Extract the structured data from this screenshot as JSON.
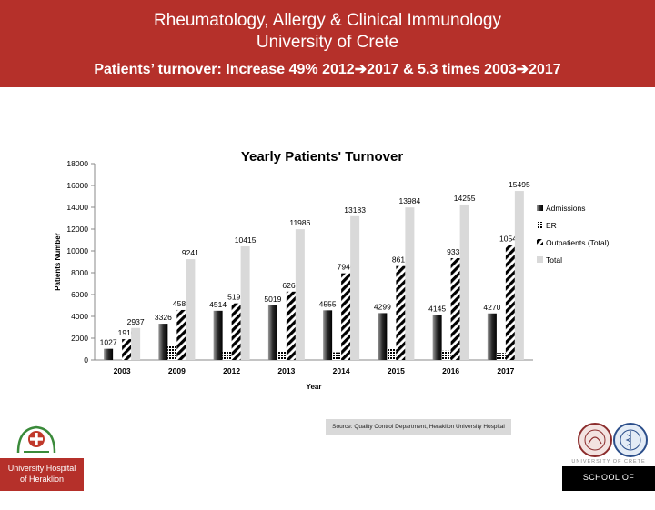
{
  "header": {
    "line1": "Rheumatology, Allergy & Clinical Immunology",
    "line2": "University of Crete",
    "line3": "Patients’ turnover: Increase 49% 2012➔2017  & 5.3 times 2003➔2017",
    "bg_color": "#b5302a"
  },
  "chart_data": {
    "type": "bar",
    "title": "Yearly Patients' Turnover",
    "xlabel": "Year",
    "ylabel": "Patients Number",
    "ylim": [
      0,
      18000
    ],
    "yticks": [
      0,
      2000,
      4000,
      6000,
      8000,
      10000,
      12000,
      14000,
      16000,
      18000
    ],
    "grid": false,
    "legend_position": "right",
    "categories": [
      "2003",
      "2009",
      "2012",
      "2013",
      "2014",
      "2015",
      "2016",
      "2017"
    ],
    "series": [
      {
        "name": "Admissions",
        "pattern": "gradient-dark",
        "values": [
          1027,
          3326,
          4514,
          5019,
          4555,
          4299,
          4145,
          4270
        ],
        "labels": [
          "1027",
          "3326",
          "4514",
          "5019",
          "4555",
          "4299",
          "4145",
          "4270"
        ]
      },
      {
        "name": "ER",
        "pattern": "dots",
        "values": [
          null,
          1400,
          750,
          750,
          700,
          1050,
          850,
          650
        ],
        "labels": [
          "",
          "",
          "",
          "",
          "",
          "",
          "",
          ""
        ]
      },
      {
        "name": "Outpatients (Total)",
        "pattern": "diagonal-stripes",
        "values": [
          1910,
          4586,
          5195,
          6267,
          7946,
          8610,
          9334,
          10543
        ],
        "labels": [
          "1910",
          "4586",
          "5195",
          "6267",
          "7946",
          "8610",
          "9334",
          "10543"
        ]
      },
      {
        "name": "Total",
        "pattern": "light-gray",
        "values": [
          2937,
          9241,
          10415,
          11986,
          13183,
          13984,
          14255,
          15495
        ],
        "labels": [
          "2937",
          "9241",
          "10415",
          "11986",
          "13183",
          "13984",
          "14255",
          "15495"
        ]
      }
    ]
  },
  "source": "Source: Quality Control Department, Heraklion University Hospital",
  "footer": {
    "hospital_caption_line1": "University Hospital",
    "hospital_caption_line2": "of Heraklion",
    "university_text": "UNIVERSITY OF CRETE",
    "school_text": "SCHOOL OF MEDICINE",
    "hospital_logo_icon": "hospital-logo-icon",
    "seal_icons": [
      "university-seal-icon",
      "medical-school-seal-icon"
    ]
  }
}
